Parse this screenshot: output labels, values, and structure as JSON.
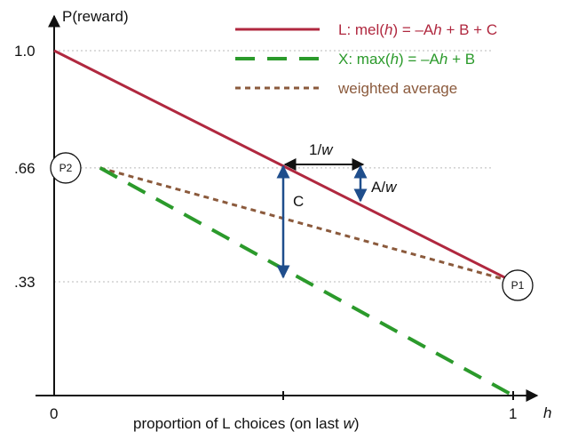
{
  "colors": {
    "line_L": "#b0283f",
    "line_X": "#2b9a2b",
    "line_avg": "#8b5a3c",
    "arrow": "#1f4e8c",
    "axis": "#111111",
    "grid": "#b9b9b9"
  },
  "axes": {
    "y_label": "P(reward)",
    "x_label_pre": "proportion of L choices (on last ",
    "x_label_var": "w",
    "x_label_post": ")",
    "x_var": "h",
    "y_ticks": [
      {
        "label": "1.0",
        "value": 1.0
      },
      {
        "label": ".66",
        "value": 0.66
      },
      {
        "label": ".33",
        "value": 0.33
      }
    ],
    "x_ticks": [
      {
        "label": "0",
        "value": 0
      },
      {
        "label": "1",
        "value": 1
      }
    ]
  },
  "legend": [
    {
      "key": "L",
      "prefix": "L: mel(",
      "var": "h",
      "suffix": ") = –A",
      "var2": "h",
      "rest": " + B + C",
      "style": "solid"
    },
    {
      "key": "X",
      "prefix": "X: max(",
      "var": "h",
      "suffix": ") = –A",
      "var2": "h",
      "rest": " + B",
      "style": "longdash"
    },
    {
      "key": "avg",
      "prefix": "weighted average",
      "var": "",
      "suffix": "",
      "var2": "",
      "rest": "",
      "style": "shortdash"
    }
  ],
  "lines": {
    "L": {
      "from": [
        0,
        1.0
      ],
      "to": [
        1,
        0.33
      ]
    },
    "X": {
      "from": [
        0.1,
        0.66
      ],
      "to": [
        1,
        0.0
      ]
    },
    "avg": {
      "from": [
        0.1,
        0.66
      ],
      "to": [
        1,
        0.33
      ]
    }
  },
  "nodes": [
    {
      "label": "P2",
      "at": [
        0,
        0.66
      ]
    },
    {
      "label": "P1",
      "at": [
        1,
        0.33
      ]
    }
  ],
  "annotations": {
    "width_label_pre": "1/",
    "width_label_var": "w",
    "drop_label_pre": "A/",
    "drop_label_var": "w",
    "gap_label": "C"
  }
}
